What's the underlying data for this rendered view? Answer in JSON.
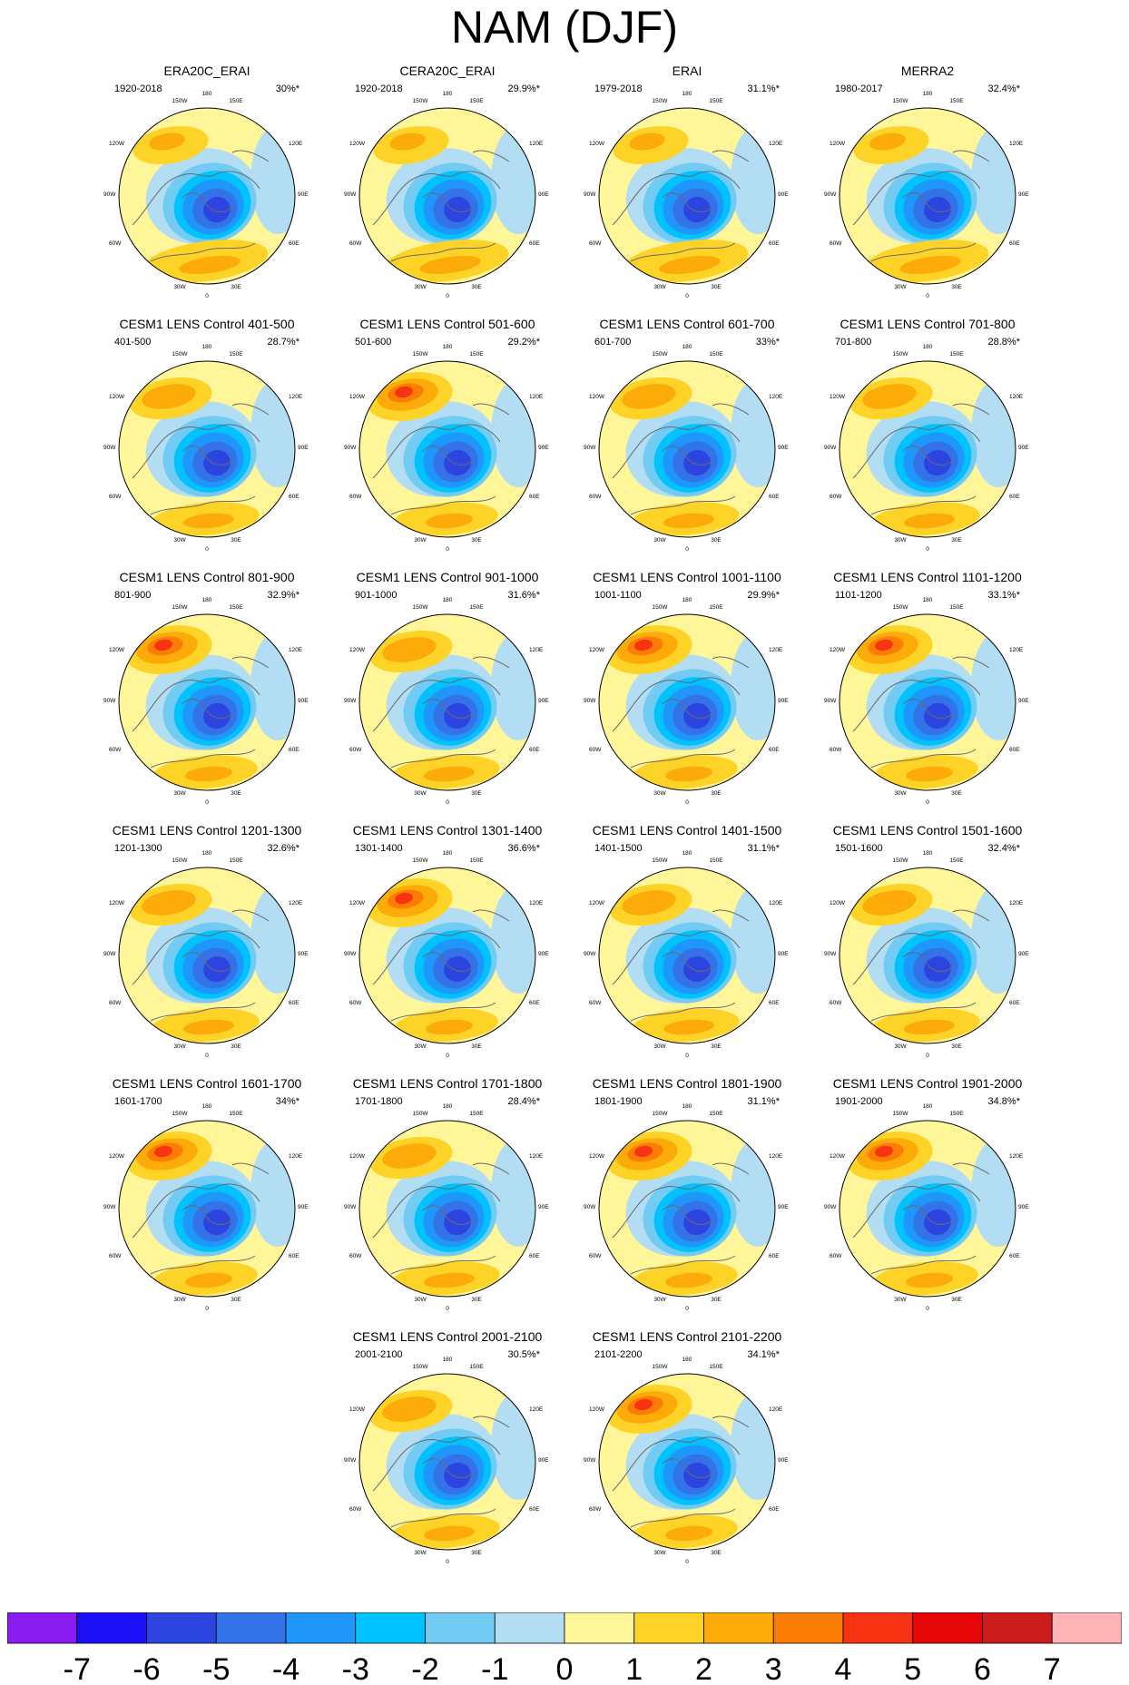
{
  "title": "NAM (DJF)",
  "panels": [
    {
      "title": "ERA20C_ERAI",
      "period": "1920-2018",
      "percent": "30%*",
      "style": "a"
    },
    {
      "title": "CERA20C_ERAI",
      "period": "1920-2018",
      "percent": "29.9%*",
      "style": "a"
    },
    {
      "title": "ERAI",
      "period": "1979-2018",
      "percent": "31.1%*",
      "style": "a"
    },
    {
      "title": "MERRA2",
      "period": "1980-2017",
      "percent": "32.4%*",
      "style": "a"
    },
    {
      "title": "CESM1 LENS Control 401-500",
      "period": "401-500",
      "percent": "28.7%*",
      "style": "b"
    },
    {
      "title": "CESM1 LENS Control 501-600",
      "period": "501-600",
      "percent": "29.2%*",
      "style": "c"
    },
    {
      "title": "CESM1 LENS Control 601-700",
      "period": "601-700",
      "percent": "33%*",
      "style": "b"
    },
    {
      "title": "CESM1 LENS Control 701-800",
      "period": "701-800",
      "percent": "28.8%*",
      "style": "b"
    },
    {
      "title": "CESM1 LENS Control 801-900",
      "period": "801-900",
      "percent": "32.9%*",
      "style": "c"
    },
    {
      "title": "CESM1 LENS Control 901-1000",
      "period": "901-1000",
      "percent": "31.6%*",
      "style": "b"
    },
    {
      "title": "CESM1 LENS Control 1001-1100",
      "period": "1001-1100",
      "percent": "29.9%*",
      "style": "c"
    },
    {
      "title": "CESM1 LENS Control 1101-1200",
      "period": "1101-1200",
      "percent": "33.1%*",
      "style": "c"
    },
    {
      "title": "CESM1 LENS Control 1201-1300",
      "period": "1201-1300",
      "percent": "32.6%*",
      "style": "b"
    },
    {
      "title": "CESM1 LENS Control 1301-1400",
      "period": "1301-1400",
      "percent": "36.6%*",
      "style": "c"
    },
    {
      "title": "CESM1 LENS Control 1401-1500",
      "period": "1401-1500",
      "percent": "31.1%*",
      "style": "b"
    },
    {
      "title": "CESM1 LENS Control 1501-1600",
      "period": "1501-1600",
      "percent": "32.4%*",
      "style": "b"
    },
    {
      "title": "CESM1 LENS Control 1601-1700",
      "period": "1601-1700",
      "percent": "34%*",
      "style": "c"
    },
    {
      "title": "CESM1 LENS Control 1701-1800",
      "period": "1701-1800",
      "percent": "28.4%*",
      "style": "b"
    },
    {
      "title": "CESM1 LENS Control 1801-1900",
      "period": "1801-1900",
      "percent": "31.1%*",
      "style": "c"
    },
    {
      "title": "CESM1 LENS Control 1901-2000",
      "period": "1901-2000",
      "percent": "34.8%*",
      "style": "c"
    },
    {
      "title": "CESM1 LENS Control 2001-2100",
      "period": "2001-2100",
      "percent": "30.5%*",
      "style": "b"
    },
    {
      "title": "CESM1 LENS Control 2101-2200",
      "period": "2101-2200",
      "percent": "34.1%*",
      "style": "c"
    }
  ],
  "longitude_labels": [
    "180",
    "150W",
    "150E",
    "120W",
    "120E",
    "90W",
    "90E",
    "60W",
    "60E",
    "30W",
    "30E",
    "0"
  ],
  "colorbar": {
    "colors": [
      "#8a1cf0",
      "#1a0ff5",
      "#2d45e0",
      "#3472e8",
      "#1e96fa",
      "#00c2ff",
      "#72cbf2",
      "#b3ddf2",
      "#fff599",
      "#fdd327",
      "#fcab08",
      "#fc7d06",
      "#f73314",
      "#e60709",
      "#cc1c1c",
      "#ffb5b8"
    ],
    "labels": [
      "-7",
      "-6",
      "-5",
      "-4",
      "-3",
      "-2",
      "-1",
      "0",
      "1",
      "2",
      "3",
      "4",
      "5",
      "6",
      "7"
    ]
  }
}
